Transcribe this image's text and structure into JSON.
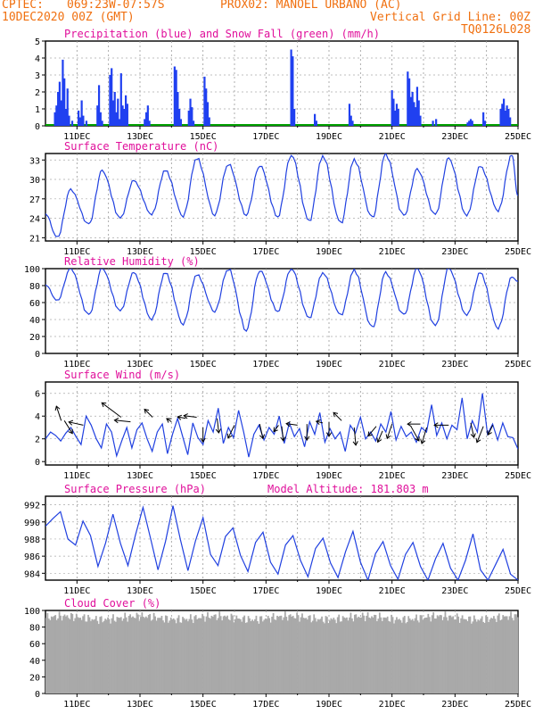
{
  "header": {
    "source": "CPTEC:",
    "coords": "069:23W-07:57S",
    "point": "PROX02: MANOEL URBANO (AC)",
    "run": "10DEC2020 00Z (GMT)",
    "grid_note": "Vertical Grid Line: 00Z",
    "model_id": "TQ0126L028"
  },
  "x_axis": {
    "start": "2020-12-10T00Z",
    "end": "2020-12-25T00Z",
    "tick_labels": [
      "11DEC",
      "13DEC",
      "15DEC",
      "17DEC",
      "19DEC",
      "21DEC",
      "23DEC",
      "25DEC"
    ]
  },
  "chart_data": [
    {
      "id": "precip",
      "type": "bar",
      "title": "Precipitation (blue) and Snow Fall (green) (mm/h)",
      "ylim": [
        0,
        5
      ],
      "yticks": [
        "0",
        "1",
        "2",
        "3",
        "4",
        "5"
      ],
      "colors": {
        "rain": "#2040f0",
        "snow": "#00a000"
      },
      "rain_events": [
        [
          0.3,
          0.8
        ],
        [
          0.35,
          1.2
        ],
        [
          0.4,
          2.0
        ],
        [
          0.45,
          2.6
        ],
        [
          0.5,
          1.5
        ],
        [
          0.55,
          3.9
        ],
        [
          0.6,
          2.8
        ],
        [
          0.65,
          1.0
        ],
        [
          0.7,
          2.2
        ],
        [
          0.75,
          0.6
        ],
        [
          0.85,
          0.3
        ],
        [
          1.05,
          0.9
        ],
        [
          1.1,
          0.5
        ],
        [
          1.15,
          1.5
        ],
        [
          1.2,
          0.6
        ],
        [
          1.3,
          0.3
        ],
        [
          1.65,
          1.2
        ],
        [
          1.7,
          2.4
        ],
        [
          1.75,
          0.8
        ],
        [
          1.8,
          0.3
        ],
        [
          2.05,
          3.0
        ],
        [
          2.1,
          3.4
        ],
        [
          2.15,
          1.5
        ],
        [
          2.2,
          2.0
        ],
        [
          2.25,
          0.8
        ],
        [
          2.3,
          1.6
        ],
        [
          2.35,
          0.4
        ],
        [
          2.4,
          3.1
        ],
        [
          2.45,
          1.2
        ],
        [
          2.5,
          1.0
        ],
        [
          2.55,
          1.8
        ],
        [
          2.6,
          1.3
        ],
        [
          3.15,
          0.4
        ],
        [
          3.2,
          0.8
        ],
        [
          3.25,
          1.2
        ],
        [
          3.3,
          0.3
        ],
        [
          4.1,
          3.5
        ],
        [
          4.15,
          3.3
        ],
        [
          4.2,
          2.0
        ],
        [
          4.25,
          1.0
        ],
        [
          4.3,
          0.4
        ],
        [
          4.55,
          0.9
        ],
        [
          4.6,
          1.6
        ],
        [
          4.65,
          1.1
        ],
        [
          4.7,
          0.3
        ],
        [
          5.05,
          2.9
        ],
        [
          5.1,
          2.2
        ],
        [
          5.15,
          1.4
        ],
        [
          5.2,
          0.5
        ],
        [
          7.8,
          4.5
        ],
        [
          7.85,
          4.1
        ],
        [
          7.9,
          1.0
        ],
        [
          8.55,
          0.7
        ],
        [
          8.6,
          0.3
        ],
        [
          9.65,
          1.3
        ],
        [
          9.7,
          0.6
        ],
        [
          9.75,
          0.3
        ],
        [
          11.0,
          2.1
        ],
        [
          11.05,
          1.6
        ],
        [
          11.1,
          0.9
        ],
        [
          11.15,
          1.3
        ],
        [
          11.2,
          1.0
        ],
        [
          11.5,
          3.2
        ],
        [
          11.55,
          2.8
        ],
        [
          11.6,
          1.7
        ],
        [
          11.65,
          2.0
        ],
        [
          11.7,
          1.4
        ],
        [
          11.75,
          1.1
        ],
        [
          11.8,
          2.3
        ],
        [
          11.85,
          1.5
        ],
        [
          11.9,
          0.6
        ],
        [
          12.3,
          0.3
        ],
        [
          12.4,
          0.4
        ],
        [
          13.4,
          0.2
        ],
        [
          13.45,
          0.3
        ],
        [
          13.5,
          0.4
        ],
        [
          13.55,
          0.3
        ],
        [
          13.9,
          0.8
        ],
        [
          13.95,
          0.3
        ],
        [
          14.45,
          1.0
        ],
        [
          14.5,
          1.3
        ],
        [
          14.55,
          1.6
        ],
        [
          14.6,
          0.9
        ],
        [
          14.65,
          1.2
        ],
        [
          14.7,
          1.0
        ],
        [
          14.75,
          0.5
        ]
      ],
      "snow": "zero throughout"
    },
    {
      "id": "temp",
      "type": "line",
      "title": "Surface Temperature (nC)",
      "ylim": [
        20.5,
        34
      ],
      "yticks": [
        "21",
        "24",
        "27",
        "30",
        "33"
      ],
      "color": "#2040e0",
      "daily_minmax": [
        [
          21.0,
          28.4
        ],
        [
          23.0,
          31.3
        ],
        [
          24.0,
          29.8
        ],
        [
          24.6,
          31.4
        ],
        [
          24.4,
          33.3
        ],
        [
          24.6,
          32.4
        ],
        [
          24.6,
          32.2
        ],
        [
          24.3,
          33.8
        ],
        [
          23.6,
          33.6
        ],
        [
          23.2,
          33.0
        ],
        [
          24.0,
          33.8
        ],
        [
          24.3,
          31.5
        ],
        [
          24.5,
          33.2
        ],
        [
          24.4,
          32.0
        ],
        [
          25.2,
          33.8
        ]
      ],
      "end_value": 27.5
    },
    {
      "id": "rh",
      "type": "line",
      "title": "Relative Humidity (%)",
      "ylim": [
        0,
        100
      ],
      "yticks": [
        "0",
        "20",
        "40",
        "60",
        "80",
        "100"
      ],
      "color": "#2040e0",
      "daily_minmax": [
        [
          62,
          100
        ],
        [
          45,
          100
        ],
        [
          50,
          95
        ],
        [
          40,
          95
        ],
        [
          35,
          93
        ],
        [
          50,
          100
        ],
        [
          28,
          98
        ],
        [
          50,
          100
        ],
        [
          42,
          95
        ],
        [
          45,
          98
        ],
        [
          30,
          95
        ],
        [
          45,
          100
        ],
        [
          32,
          100
        ],
        [
          45,
          95
        ],
        [
          30,
          90
        ]
      ],
      "end_value": 85
    },
    {
      "id": "wind",
      "type": "line",
      "title": "Surface Wind (m/s)",
      "ylim": [
        -0.3,
        7
      ],
      "yticks": [
        "0",
        "2",
        "4",
        "6"
      ],
      "color": "#2040e0",
      "speed": [
        2.0,
        2.6,
        2.3,
        1.8,
        2.5,
        3.0,
        2.2,
        1.5,
        4.0,
        3.2,
        2.0,
        1.2,
        3.3,
        2.6,
        0.5,
        1.8,
        3.0,
        1.2,
        2.8,
        3.4,
        2.0,
        0.9,
        2.6,
        3.3,
        0.7,
        2.4,
        3.8,
        2.2,
        0.6,
        3.4,
        2.1,
        1.5,
        3.6,
        2.6,
        4.7,
        1.6,
        3.0,
        2.1,
        4.5,
        2.6,
        0.4,
        2.4,
        3.2,
        1.9,
        3.0,
        2.4,
        4.0,
        1.6,
        3.4,
        2.2,
        2.9,
        1.3,
        3.5,
        2.4,
        4.3,
        1.7,
        2.9,
        2.0,
        2.6,
        0.9,
        3.2,
        2.5,
        3.9,
        2.0,
        2.6,
        1.8,
        3.3,
        2.6,
        4.4,
        1.9,
        3.1,
        2.2,
        2.6,
        1.7,
        3.0,
        2.6,
        5.0,
        2.3,
        3.4,
        2.0,
        3.2,
        2.8,
        5.6,
        2.0,
        3.6,
        2.6,
        6.0,
        2.4,
        3.3,
        1.9,
        3.4,
        2.2,
        2.1,
        1.1
      ],
      "arrows": [
        [
          0.5,
          3.6,
          -0.3,
          0.9
        ],
        [
          0.6,
          3.6,
          0.5,
          -0.8
        ],
        [
          1.2,
          3.2,
          -0.9,
          0.2
        ],
        [
          2.4,
          3.9,
          -1.2,
          0.9
        ],
        [
          2.7,
          3.5,
          -1.0,
          0.1
        ],
        [
          3.4,
          3.9,
          -0.5,
          0.5
        ],
        [
          4.0,
          3.5,
          -0.3,
          0.2
        ],
        [
          4.45,
          3.8,
          -0.5,
          0.1
        ],
        [
          4.8,
          3.9,
          -0.8,
          0.1
        ],
        [
          5.0,
          3.0,
          0.0,
          -0.9
        ],
        [
          5.45,
          3.8,
          0.1,
          -0.9
        ],
        [
          6.0,
          3.2,
          -0.4,
          -0.8
        ],
        [
          6.8,
          3.3,
          0.2,
          -0.9
        ],
        [
          7.4,
          3.2,
          -0.3,
          -0.4
        ],
        [
          7.5,
          3.1,
          0.1,
          -0.9
        ],
        [
          8.0,
          3.2,
          -0.7,
          0.1
        ],
        [
          8.3,
          3.3,
          0.0,
          -1.0
        ],
        [
          8.8,
          3.4,
          -0.4,
          0.1
        ],
        [
          9.0,
          3.5,
          0.0,
          -0.9
        ],
        [
          9.4,
          3.6,
          -0.5,
          0.5
        ],
        [
          9.8,
          3.0,
          0.1,
          -1.1
        ],
        [
          10.5,
          3.1,
          -0.5,
          -0.6
        ],
        [
          10.7,
          2.7,
          -0.3,
          -0.7
        ],
        [
          11.0,
          3.3,
          -0.3,
          -0.9
        ],
        [
          11.6,
          3.1,
          0.5,
          -0.9
        ],
        [
          11.9,
          3.3,
          -0.8,
          0.0
        ],
        [
          12.1,
          3.0,
          -0.3,
          -1.0
        ],
        [
          12.8,
          3.2,
          -0.9,
          0.0
        ],
        [
          13.5,
          3.4,
          0.2,
          -0.9
        ],
        [
          13.9,
          3.1,
          -0.4,
          -1.0
        ],
        [
          14.2,
          3.2,
          -0.3,
          -0.6
        ]
      ]
    },
    {
      "id": "pres",
      "type": "line",
      "title": "Surface Pressure (hPa)",
      "note": "Model Altitude: 181.803 m",
      "ylim": [
        983.2,
        993
      ],
      "yticks": [
        "984",
        "986",
        "988",
        "990",
        "992"
      ],
      "color": "#2040e0",
      "values": [
        989.5,
        990.4,
        991.2,
        988.0,
        987.3,
        990.1,
        988.4,
        984.8,
        987.5,
        990.9,
        987.5,
        984.9,
        988.5,
        991.7,
        988.1,
        984.4,
        987.7,
        991.9,
        987.9,
        984.3,
        987.8,
        990.5,
        986.2,
        984.9,
        988.3,
        989.3,
        986.1,
        984.2,
        987.6,
        988.8,
        985.3,
        983.9,
        987.3,
        988.4,
        985.5,
        983.6,
        986.9,
        988.1,
        985.2,
        983.5,
        986.5,
        988.9,
        985.3,
        983.2,
        986.3,
        987.7,
        984.9,
        983.3,
        986.2,
        987.6,
        984.8,
        983.2,
        985.7,
        987.5,
        984.6,
        983.2,
        985.5,
        988.6,
        984.4,
        983.2,
        985.0,
        986.8,
        983.9,
        983.2
      ]
    },
    {
      "id": "cloud",
      "type": "bar",
      "title": "Cloud Cover (%)",
      "ylim": [
        0,
        100
      ],
      "yticks": [
        "0",
        "20",
        "40",
        "60",
        "80",
        "100"
      ],
      "color": "#a9a9a9",
      "base_level": 91
    }
  ]
}
